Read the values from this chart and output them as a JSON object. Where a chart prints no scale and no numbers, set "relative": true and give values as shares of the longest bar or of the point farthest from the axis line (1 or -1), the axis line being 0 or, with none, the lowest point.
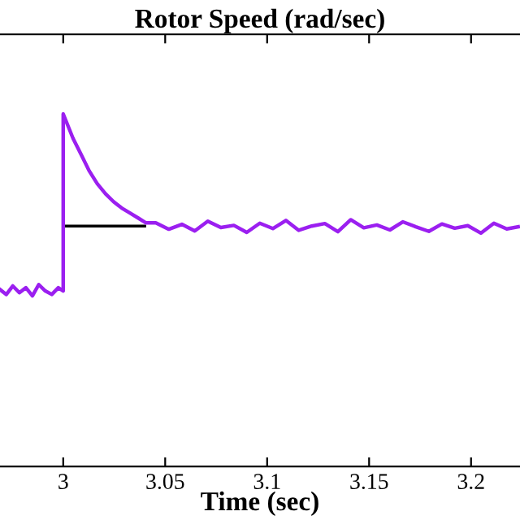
{
  "chart_data": {
    "type": "line",
    "title": "Rotor Speed (rad/sec)",
    "xlabel": "Time (sec)",
    "relative": true,
    "xlim": [
      2.969,
      3.224
    ],
    "xticks": [
      3,
      3.05,
      3.1,
      3.15,
      3.2
    ],
    "grid": false,
    "marker": "none",
    "line_style": "solid",
    "series": [
      {
        "color": "#000000",
        "x": [
          3.0,
          3.04
        ],
        "values": [
          0.682,
          0.682
        ]
      },
      {
        "color": "#9b1ff0",
        "x": [
          2.969,
          2.9721,
          2.9753,
          2.9785,
          2.9817,
          2.9849,
          2.988,
          2.9912,
          2.9944,
          2.9976,
          3.0,
          3.0,
          3.0048,
          3.0088,
          3.0127,
          3.0167,
          3.0207,
          3.0247,
          3.0287,
          3.0327,
          3.0367,
          3.0406,
          3.0454,
          3.0518,
          3.0582,
          3.0645,
          3.0709,
          3.0773,
          3.0837,
          3.09,
          3.0964,
          3.1028,
          3.1092,
          3.1155,
          3.1219,
          3.1283,
          3.1347,
          3.141,
          3.1474,
          3.1538,
          3.1602,
          3.1665,
          3.1729,
          3.1793,
          3.1857,
          3.192,
          3.1984,
          3.2048,
          3.2112,
          3.2175,
          3.2231
        ],
        "values": [
          0.502,
          0.488,
          0.512,
          0.493,
          0.507,
          0.484,
          0.516,
          0.498,
          0.488,
          0.507,
          0.498,
          1.0,
          0.931,
          0.885,
          0.839,
          0.802,
          0.774,
          0.751,
          0.733,
          0.719,
          0.705,
          0.691,
          0.691,
          0.673,
          0.687,
          0.668,
          0.696,
          0.678,
          0.684,
          0.664,
          0.69,
          0.675,
          0.698,
          0.67,
          0.682,
          0.689,
          0.666,
          0.7,
          0.677,
          0.685,
          0.671,
          0.694,
          0.68,
          0.667,
          0.688,
          0.676,
          0.683,
          0.662,
          0.69,
          0.674,
          0.68
        ]
      }
    ]
  }
}
